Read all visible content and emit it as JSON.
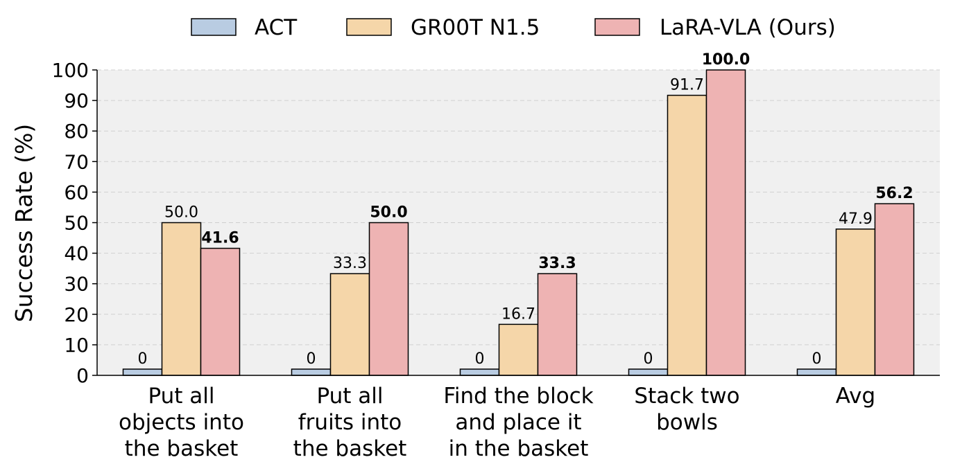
{
  "chart_data": {
    "type": "bar",
    "title": "",
    "xlabel": "",
    "ylabel": "Success Rate (%)",
    "ylim": [
      0,
      100
    ],
    "yticks": [
      0,
      10,
      20,
      30,
      40,
      50,
      60,
      70,
      80,
      90,
      100
    ],
    "grid": true,
    "legend_position": "top-center",
    "categories": [
      [
        "Put all",
        "objects into",
        "the basket"
      ],
      [
        "Put all",
        "fruits into",
        "the basket"
      ],
      [
        "Find the block",
        "and place it",
        "in the basket"
      ],
      [
        "Stack two",
        "bowls"
      ],
      [
        "Avg"
      ]
    ],
    "series": [
      {
        "name": "ACT",
        "color": "#b9cce2",
        "values": [
          0,
          0,
          0,
          0,
          0
        ],
        "labels": [
          "0",
          "0",
          "0",
          "0",
          "0"
        ],
        "bold": [
          false,
          false,
          false,
          false,
          false
        ]
      },
      {
        "name": "GR00T N1.5",
        "color": "#f5d6a9",
        "values": [
          50.0,
          33.3,
          16.7,
          91.7,
          47.9
        ],
        "labels": [
          "50.0",
          "33.3",
          "16.7",
          "91.7",
          "47.9"
        ],
        "bold": [
          false,
          false,
          false,
          false,
          false
        ]
      },
      {
        "name": "LaRA-VLA (Ours)",
        "color": "#eeb3b3",
        "values": [
          41.6,
          50.0,
          33.3,
          100.0,
          56.2
        ],
        "labels": [
          "41.6",
          "50.0",
          "33.3",
          "100.0",
          "56.2"
        ],
        "bold": [
          true,
          true,
          true,
          true,
          true
        ]
      }
    ]
  }
}
